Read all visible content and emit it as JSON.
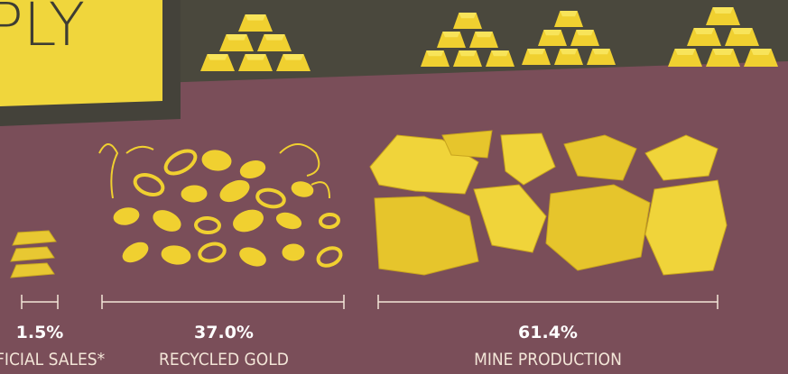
{
  "header": {
    "title": "PLY"
  },
  "segments": [
    {
      "percent": "1.5%",
      "label": "OFFICIAL SALES*"
    },
    {
      "percent": "37.0%",
      "label": "RECYCLED GOLD"
    },
    {
      "percent": "61.4%",
      "label": "MINE PRODUCTION"
    }
  ]
}
